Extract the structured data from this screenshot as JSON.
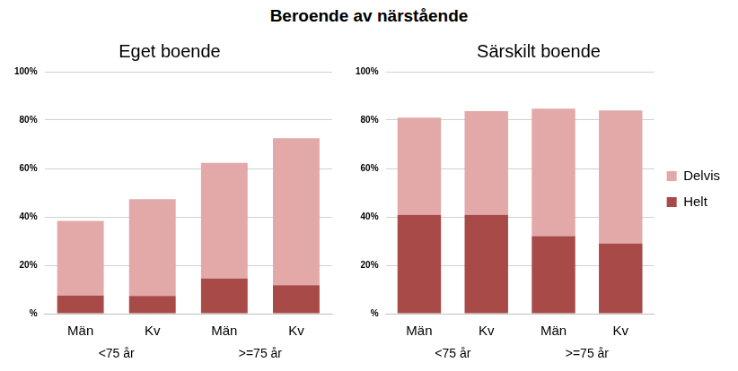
{
  "title": "Beroende av närstående",
  "chart_data": [
    {
      "type": "bar",
      "title": "Eget boende",
      "stacked": true,
      "grid": true,
      "categories": [
        "Män",
        "Kv",
        "Män",
        "Kv"
      ],
      "groups": [
        {
          "name": "<75 år",
          "size": 2
        },
        {
          "name": ">=75 år",
          "size": 2
        }
      ],
      "series": [
        {
          "name": "Helt",
          "color": "#a84a48",
          "values": [
            7.5,
            7.3,
            14.5,
            11.8
          ]
        },
        {
          "name": "Delvis",
          "color": "#e3a9a8",
          "values": [
            30.8,
            40.0,
            47.8,
            60.7
          ]
        }
      ],
      "ylim": [
        0,
        100
      ],
      "yticks": [
        {
          "value": 0,
          "label": "%"
        },
        {
          "value": 20,
          "label": "20%"
        },
        {
          "value": 40,
          "label": "40%"
        },
        {
          "value": 60,
          "label": "60%"
        },
        {
          "value": 80,
          "label": "80%"
        },
        {
          "value": 100,
          "label": "100%"
        }
      ]
    },
    {
      "type": "bar",
      "title": "Särskilt boende",
      "stacked": true,
      "grid": true,
      "legend": "right",
      "categories": [
        "Män",
        "Kv",
        "Män",
        "Kv"
      ],
      "groups": [
        {
          "name": "<75 år",
          "size": 2
        },
        {
          "name": ">=75 år",
          "size": 2
        }
      ],
      "series": [
        {
          "name": "Helt",
          "color": "#a84a48",
          "values": [
            40.8,
            40.8,
            32.0,
            29.0
          ]
        },
        {
          "name": "Delvis",
          "color": "#e3a9a8",
          "values": [
            40.2,
            42.9,
            52.7,
            55.0
          ]
        }
      ],
      "ylim": [
        0,
        100
      ],
      "yticks": [
        {
          "value": 0,
          "label": "%"
        },
        {
          "value": 20,
          "label": "20%"
        },
        {
          "value": 40,
          "label": "40%"
        },
        {
          "value": 60,
          "label": "60%"
        },
        {
          "value": 80,
          "label": "80%"
        },
        {
          "value": 100,
          "label": "100%"
        }
      ]
    }
  ]
}
